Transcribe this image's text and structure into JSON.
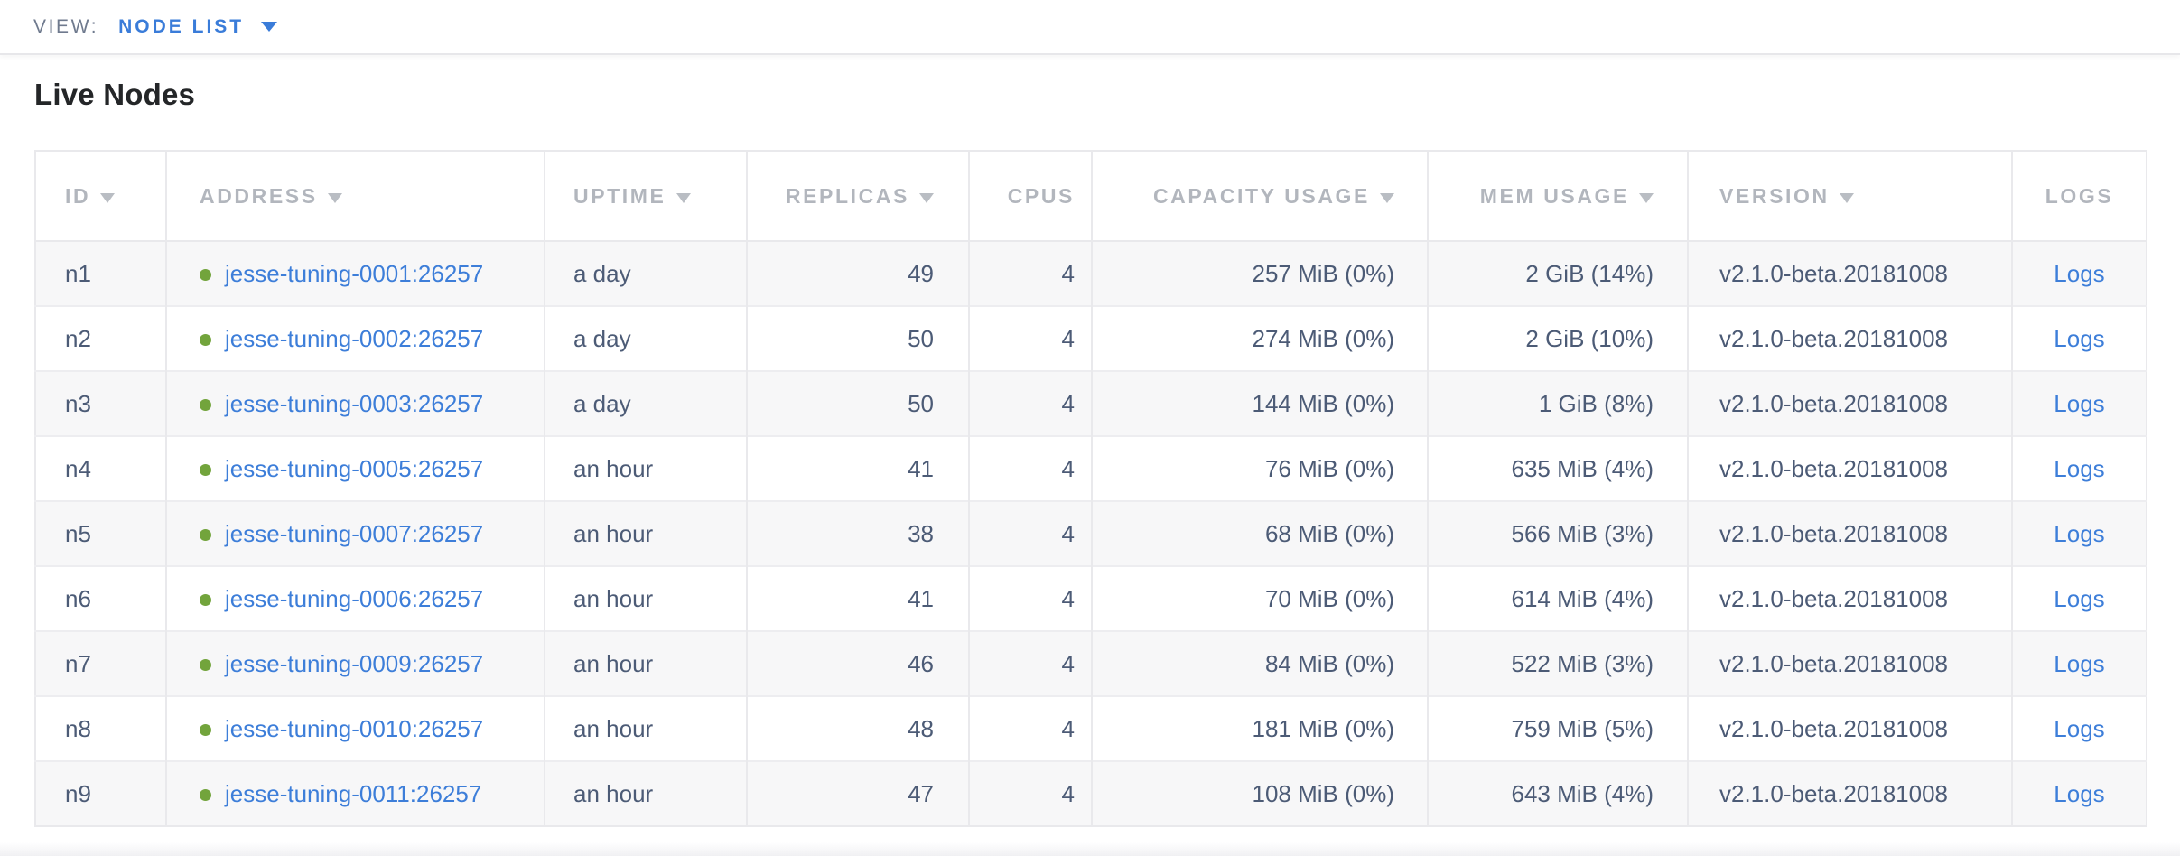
{
  "topbar": {
    "view_label": "VIEW:",
    "selected_view": "NODE LIST"
  },
  "page": {
    "title": "Live Nodes"
  },
  "colors": {
    "accent_blue": "#3a7cd9",
    "link_blue": "#3d7ed9",
    "live_status_green": "#72a43c",
    "cell_text": "#4c5b76",
    "header_text": "#b2b6bd",
    "alt_row_bg": "#f7f7f8"
  },
  "table": {
    "columns": [
      {
        "key": "id",
        "label": "ID",
        "sortable": true
      },
      {
        "key": "address",
        "label": "ADDRESS",
        "sortable": true
      },
      {
        "key": "uptime",
        "label": "UPTIME",
        "sortable": true
      },
      {
        "key": "replicas",
        "label": "REPLICAS",
        "sortable": true
      },
      {
        "key": "cpus",
        "label": "CPUS",
        "sortable": false
      },
      {
        "key": "capacity",
        "label": "CAPACITY USAGE",
        "sortable": true
      },
      {
        "key": "mem",
        "label": "MEM USAGE",
        "sortable": true
      },
      {
        "key": "version",
        "label": "VERSION",
        "sortable": true
      },
      {
        "key": "logs",
        "label": "LOGS",
        "sortable": false
      }
    ],
    "rows": [
      {
        "id": "n1",
        "address": "jesse-tuning-0001:26257",
        "status": "live",
        "uptime": "a day",
        "replicas": "49",
        "cpus": "4",
        "capacity": "257 MiB (0%)",
        "mem": "2 GiB (14%)",
        "version": "v2.1.0-beta.20181008",
        "logs": "Logs"
      },
      {
        "id": "n2",
        "address": "jesse-tuning-0002:26257",
        "status": "live",
        "uptime": "a day",
        "replicas": "50",
        "cpus": "4",
        "capacity": "274 MiB (0%)",
        "mem": "2 GiB (10%)",
        "version": "v2.1.0-beta.20181008",
        "logs": "Logs"
      },
      {
        "id": "n3",
        "address": "jesse-tuning-0003:26257",
        "status": "live",
        "uptime": "a day",
        "replicas": "50",
        "cpus": "4",
        "capacity": "144 MiB (0%)",
        "mem": "1 GiB (8%)",
        "version": "v2.1.0-beta.20181008",
        "logs": "Logs"
      },
      {
        "id": "n4",
        "address": "jesse-tuning-0005:26257",
        "status": "live",
        "uptime": "an hour",
        "replicas": "41",
        "cpus": "4",
        "capacity": "76 MiB (0%)",
        "mem": "635 MiB (4%)",
        "version": "v2.1.0-beta.20181008",
        "logs": "Logs"
      },
      {
        "id": "n5",
        "address": "jesse-tuning-0007:26257",
        "status": "live",
        "uptime": "an hour",
        "replicas": "38",
        "cpus": "4",
        "capacity": "68 MiB (0%)",
        "mem": "566 MiB (3%)",
        "version": "v2.1.0-beta.20181008",
        "logs": "Logs"
      },
      {
        "id": "n6",
        "address": "jesse-tuning-0006:26257",
        "status": "live",
        "uptime": "an hour",
        "replicas": "41",
        "cpus": "4",
        "capacity": "70 MiB (0%)",
        "mem": "614 MiB (4%)",
        "version": "v2.1.0-beta.20181008",
        "logs": "Logs"
      },
      {
        "id": "n7",
        "address": "jesse-tuning-0009:26257",
        "status": "live",
        "uptime": "an hour",
        "replicas": "46",
        "cpus": "4",
        "capacity": "84 MiB (0%)",
        "mem": "522 MiB (3%)",
        "version": "v2.1.0-beta.20181008",
        "logs": "Logs"
      },
      {
        "id": "n8",
        "address": "jesse-tuning-0010:26257",
        "status": "live",
        "uptime": "an hour",
        "replicas": "48",
        "cpus": "4",
        "capacity": "181 MiB (0%)",
        "mem": "759 MiB (5%)",
        "version": "v2.1.0-beta.20181008",
        "logs": "Logs"
      },
      {
        "id": "n9",
        "address": "jesse-tuning-0011:26257",
        "status": "live",
        "uptime": "an hour",
        "replicas": "47",
        "cpus": "4",
        "capacity": "108 MiB (0%)",
        "mem": "643 MiB (4%)",
        "version": "v2.1.0-beta.20181008",
        "logs": "Logs"
      }
    ]
  }
}
